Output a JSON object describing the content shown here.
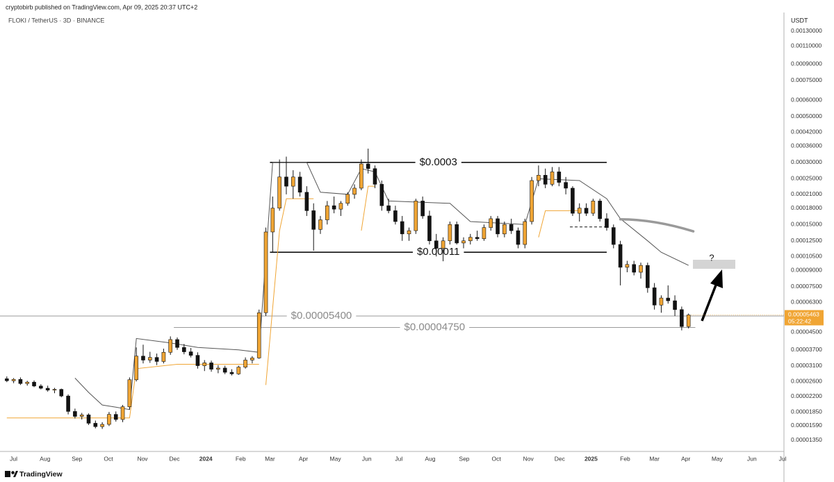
{
  "chart_data": {
    "type": "candlestick",
    "subtitle": "cryptobirb published on TradingView.com, Apr 09, 2025 20:37 UTC+2",
    "title": "FLOKI / TetherUS · 3D · BINANCE",
    "y_axis_label": "USDT",
    "source": "TradingView",
    "log_scale": true,
    "up_color": "#f0a534",
    "down_color": "#131313",
    "ylim": [
      1.19e-05,
      0.0016
    ],
    "yticks": [
      {
        "value": 0.0013,
        "label": "0.00130000"
      },
      {
        "value": 0.0011,
        "label": "0.00110000"
      },
      {
        "value": 0.0009,
        "label": "0.00090000"
      },
      {
        "value": 0.00075,
        "label": "0.00075000"
      },
      {
        "value": 0.0006,
        "label": "0.00060000"
      },
      {
        "value": 0.0005,
        "label": "0.00050000"
      },
      {
        "value": 0.00042,
        "label": "0.00042000"
      },
      {
        "value": 0.00036,
        "label": "0.00036000"
      },
      {
        "value": 0.0003,
        "label": "0.00030000"
      },
      {
        "value": 0.00025,
        "label": "0.00025000"
      },
      {
        "value": 0.00021,
        "label": "0.00021000"
      },
      {
        "value": 0.00018,
        "label": "0.00018000"
      },
      {
        "value": 0.00015,
        "label": "0.00015000"
      },
      {
        "value": 0.000125,
        "label": "0.00012500"
      },
      {
        "value": 0.000105,
        "label": "0.00010500"
      },
      {
        "value": 9e-05,
        "label": "0.00009000"
      },
      {
        "value": 7.5e-05,
        "label": "0.00007500"
      },
      {
        "value": 6.3e-05,
        "label": "0.00006300"
      },
      {
        "value": 4.5e-05,
        "label": "0.00004500"
      },
      {
        "value": 3.7e-05,
        "label": "0.00003700"
      },
      {
        "value": 3.1e-05,
        "label": "0.00003100"
      },
      {
        "value": 2.6e-05,
        "label": "0.00002600"
      },
      {
        "value": 2.2e-05,
        "label": "0.00002200"
      },
      {
        "value": 1.85e-05,
        "label": "0.00001850"
      },
      {
        "value": 1.59e-05,
        "label": "0.00001590"
      },
      {
        "value": 1.35e-05,
        "label": "0.00001350"
      }
    ],
    "last_price": {
      "value": 5.463e-05,
      "label": "0.00005463"
    },
    "countdown": "05:22:42",
    "xlim": [
      -1,
      114
    ],
    "xticks": [
      {
        "value": 1,
        "label": "Jul"
      },
      {
        "value": 5.6,
        "label": "Aug"
      },
      {
        "value": 10.3,
        "label": "Sep"
      },
      {
        "value": 14.9,
        "label": "Oct"
      },
      {
        "value": 19.9,
        "label": "Nov"
      },
      {
        "value": 24.6,
        "label": "Dec"
      },
      {
        "value": 29.2,
        "label": "2024"
      },
      {
        "value": 34.3,
        "label": "Feb"
      },
      {
        "value": 38.6,
        "label": "Mar"
      },
      {
        "value": 43.5,
        "label": "Apr"
      },
      {
        "value": 48.2,
        "label": "May"
      },
      {
        "value": 52.8,
        "label": "Jun"
      },
      {
        "value": 57.5,
        "label": "Jul"
      },
      {
        "value": 62.1,
        "label": "Aug"
      },
      {
        "value": 67.1,
        "label": "Sep"
      },
      {
        "value": 71.8,
        "label": "Oct"
      },
      {
        "value": 76.5,
        "label": "Nov"
      },
      {
        "value": 81.1,
        "label": "Dec"
      },
      {
        "value": 85.7,
        "label": "2025"
      },
      {
        "value": 90.7,
        "label": "Feb"
      },
      {
        "value": 95,
        "label": "Mar"
      },
      {
        "value": 99.6,
        "label": "Apr"
      },
      {
        "value": 104.2,
        "label": "May"
      },
      {
        "value": 109.3,
        "label": "Jun"
      },
      {
        "value": 113.8,
        "label": "Jul"
      }
    ],
    "ohlc": {
      "open": [
        2.68e-05,
        2.62e-05,
        2.66e-05,
        2.54e-05,
        2.58e-05,
        2.47e-05,
        2.41e-05,
        2.36e-05,
        2.38e-05,
        2.21e-05,
        1.86e-05,
        1.76e-05,
        1.79e-05,
        1.63e-05,
        1.57e-05,
        1.61e-05,
        1.8e-05,
        1.7e-05,
        1.96e-05,
        2.65e-05,
        3.45e-05,
        3.3e-05,
        3.4e-05,
        3.25e-05,
        3.6e-05,
        4.15e-05,
        3.8e-05,
        3.62e-05,
        3.48e-05,
        3.1e-05,
        3.2e-05,
        2.98e-05,
        3.02e-05,
        2.88e-05,
        2.83e-05,
        3.05e-05,
        3.3e-05,
        3.38e-05,
        5.6e-05,
        0.000138,
        0.00018,
        0.000255,
        0.00023,
        0.000255,
        0.000215,
        0.000175,
        0.000142,
        0.000158,
        0.000185,
        0.000178,
        0.00019,
        0.00021,
        0.000225,
        0.000295,
        0.00028,
        0.000235,
        0.000185,
        0.000175,
        0.000155,
        0.000135,
        0.00014,
        0.000195,
        0.000165,
        0.000125,
        0.000115,
        0.000125,
        0.00015,
        0.000122,
        0.000125,
        0.00013,
        0.000128,
        0.000145,
        0.00016,
        0.000135,
        0.00015,
        0.00014,
        0.00012,
        0.000155,
        0.000245,
        0.00026,
        0.000235,
        0.00027,
        0.00024,
        0.000225,
        0.00017,
        0.00018,
        0.00017,
        0.000195,
        0.00016,
        0.000145,
        0.00012,
        9.3e-05,
        9.6e-05,
        8.8e-05,
        9.5e-05,
        7.4e-05,
        6.1e-05,
        6.6e-05,
        6.4e-05,
        5.8e-05,
        4.8e-05
      ],
      "high": [
        2.75e-05,
        2.7e-05,
        2.72e-05,
        2.62e-05,
        2.63e-05,
        2.52e-05,
        2.48e-05,
        2.42e-05,
        2.4e-05,
        2.25e-05,
        1.92e-05,
        1.83e-05,
        1.82e-05,
        1.68e-05,
        1.65e-05,
        1.85e-05,
        1.86e-05,
        2e-05,
        2.72e-05,
        3.8e-05,
        3.92e-05,
        3.62e-05,
        3.55e-05,
        3.75e-05,
        4.3e-05,
        4.25e-05,
        3.95e-05,
        3.78e-05,
        3.6e-05,
        3.3e-05,
        3.28e-05,
        3.12e-05,
        3.1e-05,
        2.98e-05,
        3.1e-05,
        3.4e-05,
        3.45e-05,
        5.8e-05,
        0.000145,
        0.000205,
        0.00031,
        0.00032,
        0.000275,
        0.00027,
        0.00023,
        0.00019,
        0.000165,
        0.000195,
        0.000205,
        0.000195,
        0.000215,
        0.000235,
        0.00031,
        0.00035,
        0.00029,
        0.000245,
        0.0002,
        0.000185,
        0.000165,
        0.000145,
        0.0002,
        0.000205,
        0.000175,
        0.000135,
        0.00013,
        0.000155,
        0.000155,
        0.00013,
        0.000135,
        0.00014,
        0.00015,
        0.000165,
        0.000165,
        0.000155,
        0.00016,
        0.000145,
        0.00016,
        0.000255,
        0.00029,
        0.00028,
        0.000285,
        0.000285,
        0.000255,
        0.00023,
        0.00019,
        0.00019,
        0.0002,
        0.0002,
        0.00017,
        0.00015,
        0.000125,
        0.0001,
        0.0001,
        9.8e-05,
        9.8e-05,
        7.8e-05,
        6.8e-05,
        7.6e-05,
        6.8e-05,
        6e-05,
        5.55e-05
      ],
      "low": [
        2.58e-05,
        2.55e-05,
        2.5e-05,
        2.48e-05,
        2.44e-05,
        2.38e-05,
        2.32e-05,
        2.28e-05,
        2.18e-05,
        1.8e-05,
        1.72e-05,
        1.7e-05,
        1.6e-05,
        1.54e-05,
        1.53e-05,
        1.58e-05,
        1.66e-05,
        1.65e-05,
        1.9e-05,
        2.6e-05,
        3.18e-05,
        3.2e-05,
        3.12e-05,
        3.18e-05,
        3.5e-05,
        3.7e-05,
        3.52e-05,
        3.4e-05,
        3e-05,
        2.92e-05,
        2.9e-05,
        2.85e-05,
        2.82e-05,
        2.78e-05,
        2.8e-05,
        3e-05,
        3.18e-05,
        3.35e-05,
        5.4e-05,
        0.00011,
        0.000175,
        0.00021,
        0.0002,
        0.000205,
        0.000165,
        0.000112,
        0.000135,
        0.00015,
        0.00017,
        0.000165,
        0.000185,
        0.0002,
        0.00022,
        0.000265,
        0.000225,
        0.000175,
        0.00017,
        0.00015,
        0.000125,
        0.000125,
        0.000135,
        0.00016,
        0.00012,
        0.000105,
        9.95e-05,
        0.00012,
        0.00012,
        0.000115,
        0.00012,
        0.000125,
        0.000125,
        0.00014,
        0.00013,
        0.00013,
        0.000135,
        0.000115,
        0.000115,
        0.00015,
        0.00023,
        0.000225,
        0.00023,
        0.00023,
        0.00021,
        0.000165,
        0.000155,
        0.000165,
        0.000165,
        0.000155,
        0.00014,
        0.000115,
        7.6e-05,
        8.8e-05,
        8.5e-05,
        8.2e-05,
        7e-05,
        5.8e-05,
        5.6e-05,
        6.2e-05,
        5.4e-05,
        4.6e-05,
        4.7e-05
      ],
      "close": [
        2.62e-05,
        2.66e-05,
        2.54e-05,
        2.58e-05,
        2.47e-05,
        2.41e-05,
        2.36e-05,
        2.38e-05,
        2.21e-05,
        1.86e-05,
        1.76e-05,
        1.79e-05,
        1.63e-05,
        1.57e-05,
        1.61e-05,
        1.8e-05,
        1.7e-05,
        1.96e-05,
        2.65e-05,
        3.45e-05,
        3.3e-05,
        3.4e-05,
        3.25e-05,
        3.6e-05,
        4.15e-05,
        3.8e-05,
        3.62e-05,
        3.48e-05,
        3.1e-05,
        3.2e-05,
        2.98e-05,
        3.02e-05,
        2.88e-05,
        2.83e-05,
        3.05e-05,
        3.3e-05,
        3.38e-05,
        5.6e-05,
        0.000138,
        0.00018,
        0.000255,
        0.00023,
        0.000255,
        0.000215,
        0.000175,
        0.000142,
        0.000158,
        0.000185,
        0.000178,
        0.00019,
        0.00021,
        0.000225,
        0.000295,
        0.00028,
        0.000235,
        0.000185,
        0.000175,
        0.000155,
        0.000135,
        0.00014,
        0.000195,
        0.000165,
        0.000125,
        0.000115,
        0.000125,
        0.00015,
        0.000122,
        0.000125,
        0.00013,
        0.000128,
        0.000145,
        0.00016,
        0.000135,
        0.00015,
        0.00014,
        0.00012,
        0.000155,
        0.000245,
        0.00026,
        0.000235,
        0.00027,
        0.00024,
        0.000225,
        0.00017,
        0.00018,
        0.00017,
        0.000195,
        0.00016,
        0.000145,
        0.00012,
        9.3e-05,
        9.6e-05,
        8.8e-05,
        9.5e-05,
        7.4e-05,
        6.1e-05,
        6.6e-05,
        6.4e-05,
        5.8e-05,
        4.8e-05,
        5.463e-05
      ]
    },
    "lines": [
      {
        "color": "#555555",
        "x": [
          10,
          12,
          14,
          16,
          18,
          19,
          24,
          28,
          34,
          37,
          39,
          44,
          46,
          50,
          52,
          54,
          56,
          65,
          68,
          76,
          78,
          84,
          88,
          90,
          94,
          96,
          100
        ],
        "values": [
          2.7e-05,
          2.3e-05,
          2e-05,
          1.95e-05,
          1.9e-05,
          4.2e-05,
          4e-05,
          3.8e-05,
          3.7e-05,
          3.6e-05,
          0.0003,
          0.0003,
          0.000215,
          0.00021,
          0.00028,
          0.00027,
          0.000195,
          0.00019,
          0.000155,
          0.00015,
          0.00025,
          0.000245,
          0.0002,
          0.00016,
          0.000125,
          0.00011,
          9.5e-05
        ]
      },
      {
        "color": "#f0a534",
        "x": [
          0,
          18,
          19,
          25,
          37,
          null,
          38,
          40,
          41,
          45,
          null,
          52,
          53,
          54,
          null,
          78,
          79,
          84
        ],
        "values": [
          1.73e-05,
          1.73e-05,
          3e-05,
          3.15e-05,
          3.15e-05,
          null,
          2.5e-05,
          0.00014,
          0.0002,
          0.0002,
          null,
          0.00014,
          0.00023,
          0.00023,
          null,
          0.00013,
          0.000175,
          0.000175
        ]
      }
    ],
    "levels": [
      {
        "label": "$0.0003",
        "value": 0.0003,
        "x": [
          38.6,
          88
        ],
        "color": "#111111"
      },
      {
        "label": "$0.00011",
        "value": 0.00011,
        "x": [
          38.6,
          88
        ],
        "color": "#111111"
      },
      {
        "label": "$0.00005400",
        "value": 5.4e-05,
        "x": [
          -1,
          114
        ],
        "color": "#9a9a9a"
      },
      {
        "label": "$0.00004750",
        "value": 4.75e-05,
        "x": [
          24.5,
          101
        ],
        "color": "#9a9a9a"
      }
    ],
    "dashed_level": {
      "value": 0.000146,
      "x": [
        82.6,
        88
      ]
    },
    "curve": {
      "x": [
        90,
        95,
        100.7
      ],
      "values": [
        0.000159,
        0.000154,
        0.000139
      ]
    },
    "annotation": "?"
  }
}
